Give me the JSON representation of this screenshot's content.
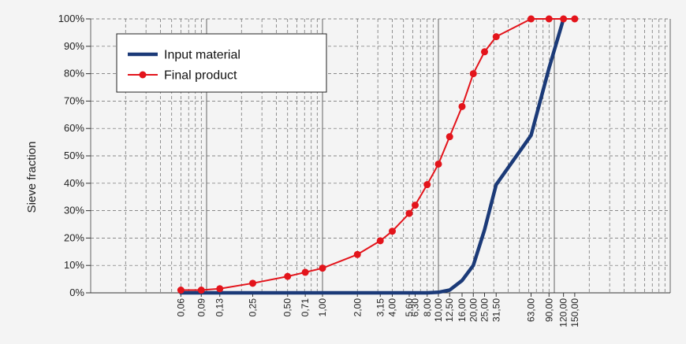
{
  "chart_data": {
    "type": "line",
    "title": "",
    "xlabel": "",
    "ylabel": "Sieve fraction",
    "x_scale": "log",
    "x_ticks": [
      "0,06",
      "0,09",
      "0,13",
      "0,25",
      "0,50",
      "0,71",
      "1,00",
      "2,00",
      "3,15",
      "4,00",
      "5,60",
      "6,30",
      "8,00",
      "10,00",
      "12,50",
      "16,00",
      "20,00",
      "25,00",
      "31,50",
      "63,00",
      "90,00",
      "120,00",
      "150,00"
    ],
    "y_ticks": [
      "0%",
      "10%",
      "20%",
      "30%",
      "40%",
      "50%",
      "60%",
      "70%",
      "80%",
      "90%",
      "100%"
    ],
    "ylim": [
      0,
      100
    ],
    "grid": true,
    "legend_position": "top-left",
    "series": [
      {
        "name": "Input material",
        "color": "#1b3a78",
        "marker": "none",
        "x": [
          0.06,
          0.09,
          0.13,
          0.25,
          0.5,
          0.71,
          1.0,
          2.0,
          3.15,
          4.0,
          5.6,
          6.3,
          8.0,
          10.0,
          12.5,
          16.0,
          20.0,
          25.0,
          31.5,
          63.0,
          90.0,
          120.0
        ],
        "y": [
          0,
          0,
          0,
          0,
          0,
          0,
          0,
          0,
          0,
          0,
          0,
          0,
          0,
          0.2,
          1,
          4.5,
          10,
          23,
          39.5,
          57.5,
          82,
          100
        ]
      },
      {
        "name": "Final product",
        "color": "#e3141b",
        "marker": "circle",
        "x": [
          0.06,
          0.09,
          0.13,
          0.25,
          0.5,
          0.71,
          1.0,
          2.0,
          3.15,
          4.0,
          5.6,
          6.3,
          8.0,
          10.0,
          12.5,
          16.0,
          20.0,
          25.0,
          31.5,
          63.0,
          90.0,
          120.0,
          150.0
        ],
        "y": [
          1,
          1,
          1.5,
          3.5,
          6,
          7.5,
          9,
          14,
          19,
          22.5,
          29,
          32,
          39.5,
          47,
          57,
          68,
          80,
          88,
          93.5,
          100,
          100,
          100,
          100
        ]
      }
    ]
  }
}
